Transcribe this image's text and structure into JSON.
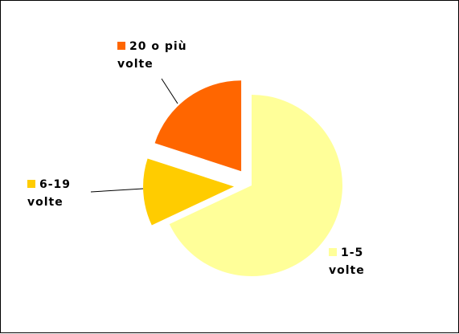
{
  "chart_data": {
    "type": "pie",
    "categories": [
      "1-5 volte",
      "6-19 volte",
      "20 o più volte"
    ],
    "values": [
      68,
      12,
      20
    ],
    "colors": [
      "#ffff99",
      "#ffcc00",
      "#ff6600"
    ],
    "exploded": [
      false,
      true,
      true
    ]
  }
}
